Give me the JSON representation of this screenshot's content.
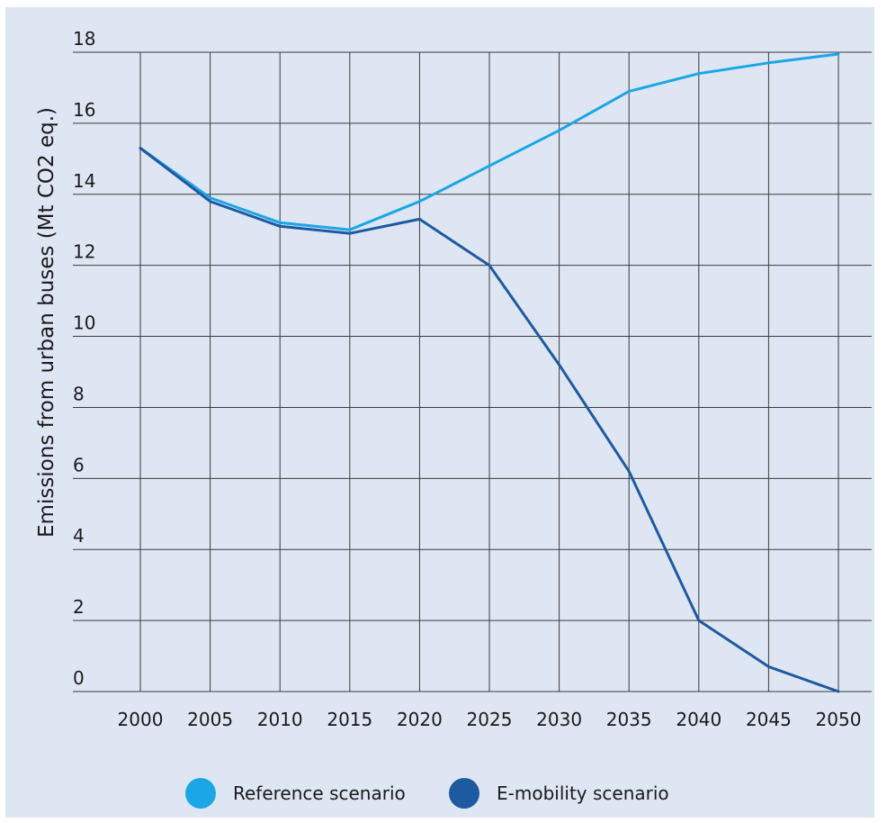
{
  "chart_data": {
    "type": "line",
    "title": "",
    "xlabel": "",
    "ylabel": "Emissions from urban buses (Mt CO2 eq.)",
    "x": [
      2000,
      2005,
      2010,
      2015,
      2020,
      2025,
      2030,
      2035,
      2040,
      2045,
      2050
    ],
    "xlim": [
      2000,
      2050
    ],
    "ylim": [
      0,
      18
    ],
    "yticks": [
      0,
      2,
      4,
      6,
      8,
      10,
      12,
      14,
      16,
      18
    ],
    "grid": true,
    "legend_position": "bottom-center",
    "series": [
      {
        "name": "Reference scenario",
        "color": "#1ba6e6",
        "values": [
          15.3,
          13.9,
          13.2,
          13.0,
          13.8,
          14.8,
          15.8,
          16.9,
          17.4,
          17.7,
          17.95
        ]
      },
      {
        "name": "E-mobility scenario",
        "color": "#1e5aa0",
        "values": [
          15.3,
          13.8,
          13.1,
          12.9,
          13.3,
          12.0,
          9.2,
          6.2,
          2.0,
          0.7,
          0.0
        ]
      }
    ]
  }
}
